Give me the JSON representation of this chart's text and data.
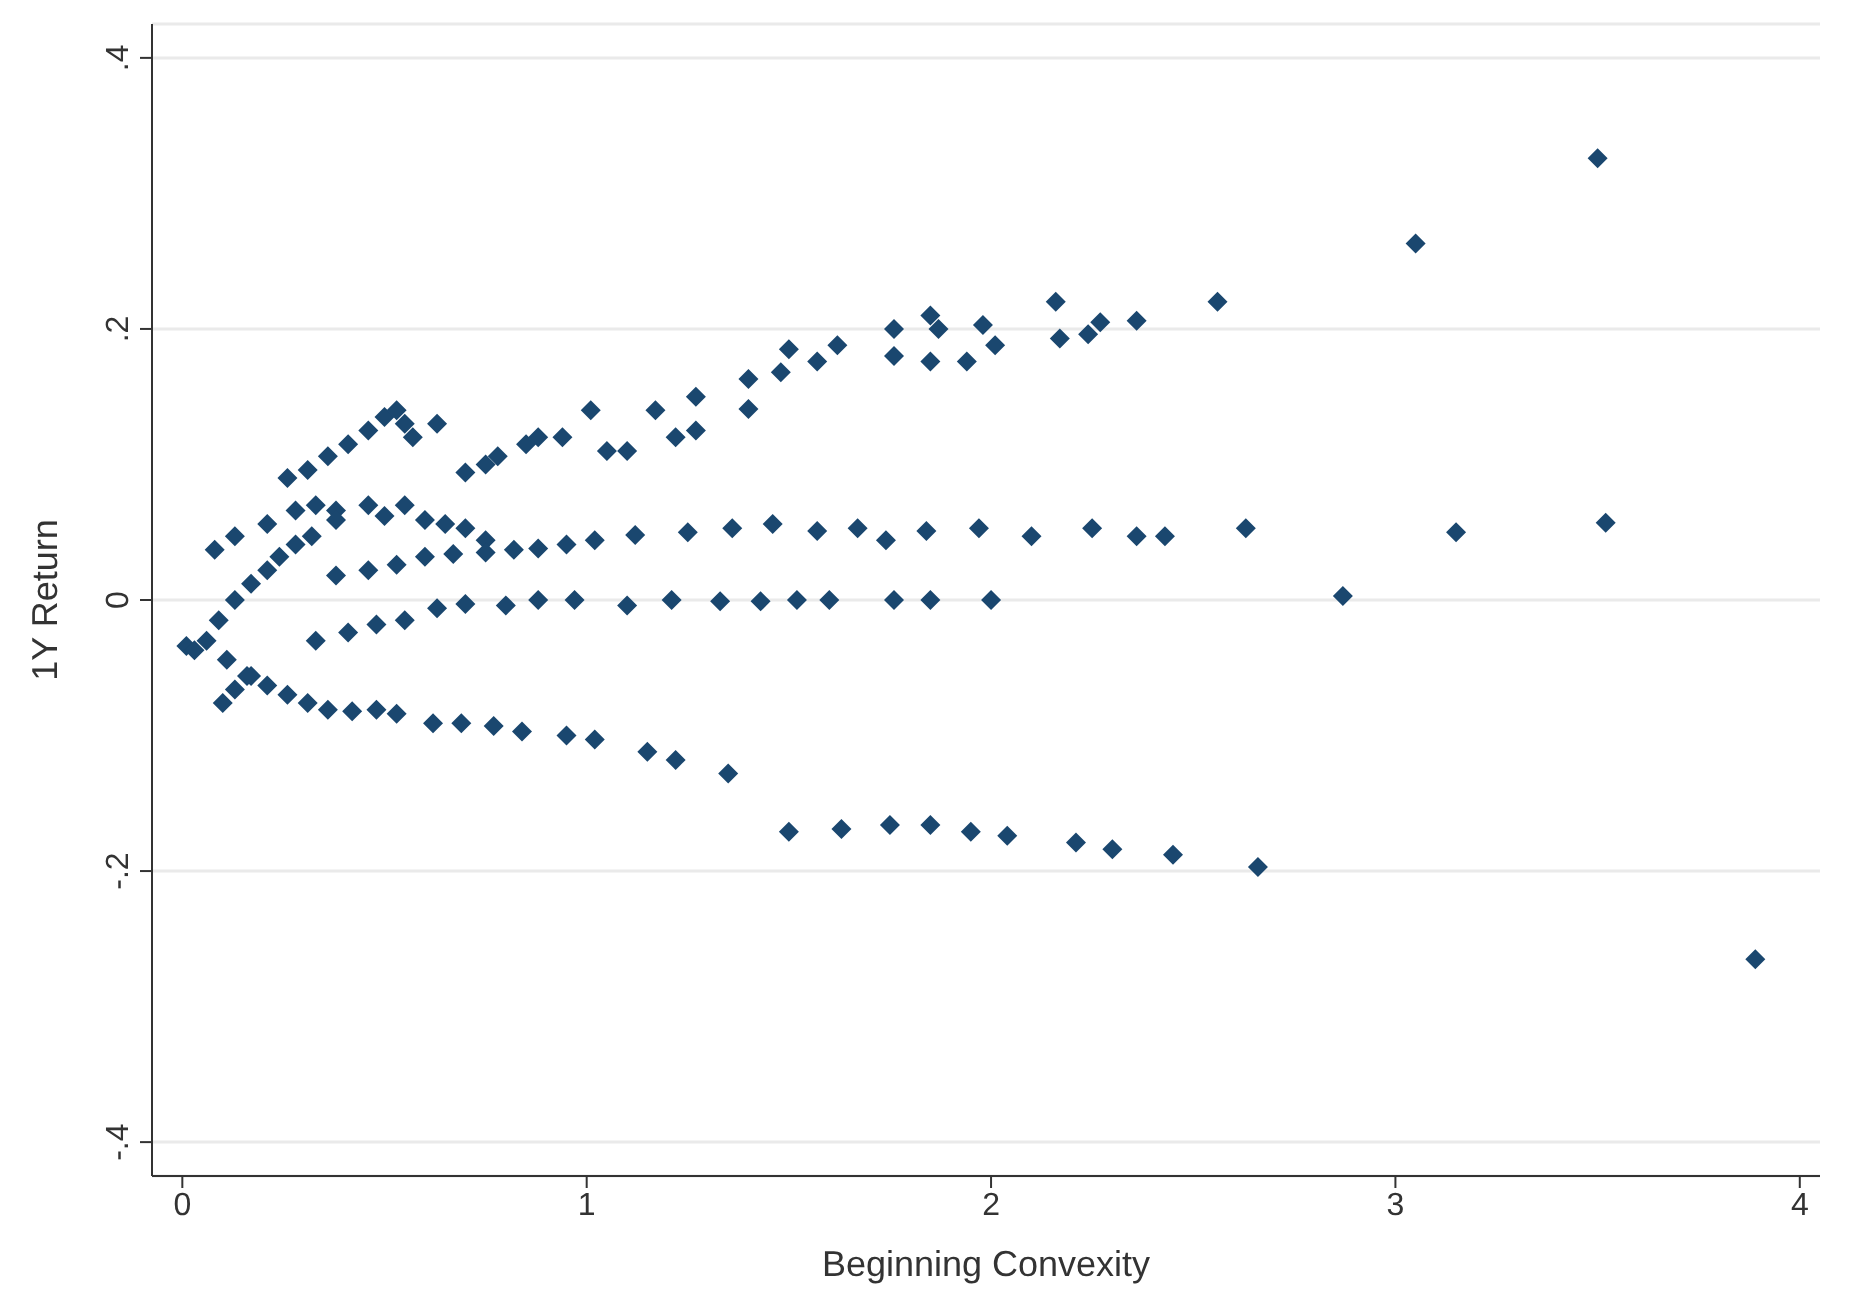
{
  "chart_data": {
    "type": "scatter",
    "xlabel": "Beginning Convexity",
    "ylabel": "1Y Return",
    "xlim": [
      -0.075,
      4.05
    ],
    "xticks": [
      0,
      1,
      2,
      3,
      4
    ],
    "ylim": [
      -0.425,
      0.425
    ],
    "yticks": [
      {
        "value": 0.4,
        "label": ".4"
      },
      {
        "value": 0.2,
        "label": ".2"
      },
      {
        "value": 0,
        "label": "0"
      },
      {
        "value": -0.2,
        "label": "-.2"
      },
      {
        "value": -0.4,
        "label": "-.4"
      }
    ],
    "grid": "y",
    "marker": "diamond",
    "legend": false,
    "series": [
      {
        "color": "#1a476f",
        "x": [
          0.26,
          0.31,
          0.36,
          0.41,
          0.46,
          0.5,
          0.53,
          0.55,
          0.57,
          0.63,
          0.7,
          0.75,
          0.78,
          0.85,
          0.88,
          0.94,
          1.01,
          1.05,
          1.1,
          1.17,
          1.22,
          1.27,
          1.27,
          1.4,
          1.4,
          1.48,
          1.5,
          1.57,
          1.62,
          1.76,
          1.76,
          1.85,
          1.87,
          1.85,
          1.94,
          1.98,
          2.01,
          2.16,
          2.17,
          2.24,
          2.27,
          2.36,
          2.56,
          3.05,
          3.5,
          0.08,
          0.13,
          0.21,
          0.28,
          0.33,
          0.38,
          0.46,
          0.5,
          0.55,
          0.6,
          0.65,
          0.7,
          0.75,
          0.82,
          0.88,
          0.95,
          1.02,
          1.12,
          1.25,
          1.36,
          1.46,
          1.57,
          1.67,
          1.74,
          1.84,
          1.97,
          2.1,
          2.25,
          2.36,
          2.43,
          2.63,
          3.15,
          3.52,
          0.33,
          0.41,
          0.48,
          0.55,
          0.63,
          0.7,
          0.8,
          0.88,
          0.97,
          1.1,
          1.21,
          1.33,
          1.43,
          1.52,
          1.6,
          1.76,
          1.85,
          2.0,
          2.87,
          0.38,
          0.46,
          0.53,
          0.6,
          0.67,
          0.75,
          0.01,
          0.06,
          0.09,
          0.13,
          0.17,
          0.21,
          0.24,
          0.28,
          0.32,
          0.38,
          0.03,
          0.11,
          0.16,
          0.21,
          0.26,
          0.31,
          0.36,
          0.42,
          0.48,
          0.53,
          0.62,
          0.69,
          0.77,
          0.84,
          0.95,
          1.02,
          1.15,
          1.22,
          1.35,
          1.5,
          1.63,
          1.75,
          1.85,
          1.95,
          2.04,
          2.21,
          2.3,
          2.45,
          2.66,
          3.89,
          0.1,
          0.13,
          0.17
        ],
        "values": [
          0.09,
          0.096,
          0.106,
          0.115,
          0.125,
          0.135,
          0.14,
          0.13,
          0.12,
          0.13,
          0.094,
          0.1,
          0.106,
          0.115,
          0.12,
          0.12,
          0.14,
          0.11,
          0.11,
          0.14,
          0.12,
          0.125,
          0.15,
          0.163,
          0.141,
          0.168,
          0.185,
          0.176,
          0.188,
          0.2,
          0.18,
          0.21,
          0.2,
          0.176,
          0.176,
          0.203,
          0.188,
          0.22,
          0.193,
          0.196,
          0.205,
          0.206,
          0.22,
          0.263,
          0.326,
          0.037,
          0.047,
          0.056,
          0.066,
          0.07,
          0.066,
          0.07,
          0.062,
          0.07,
          0.059,
          0.056,
          0.053,
          0.044,
          0.037,
          0.038,
          0.041,
          0.044,
          0.048,
          0.05,
          0.053,
          0.056,
          0.051,
          0.053,
          0.044,
          0.051,
          0.053,
          0.047,
          0.053,
          0.047,
          0.047,
          0.053,
          0.05,
          0.057,
          -0.03,
          -0.024,
          -0.018,
          -0.015,
          -0.006,
          -0.003,
          -0.004,
          0,
          0,
          -0.004,
          0,
          -0.001,
          -0.001,
          0,
          0,
          0,
          0,
          0,
          0.003,
          0.018,
          0.022,
          0.026,
          0.032,
          0.034,
          0.035,
          -0.034,
          -0.03,
          -0.015,
          0,
          0.012,
          0.022,
          0.032,
          0.041,
          0.047,
          0.059,
          -0.037,
          -0.044,
          -0.056,
          -0.063,
          -0.07,
          -0.076,
          -0.081,
          -0.082,
          -0.081,
          -0.084,
          -0.091,
          -0.091,
          -0.093,
          -0.097,
          -0.1,
          -0.103,
          -0.112,
          -0.118,
          -0.128,
          -0.171,
          -0.169,
          -0.166,
          -0.166,
          -0.171,
          -0.174,
          -0.179,
          -0.184,
          -0.188,
          -0.197,
          -0.265,
          -0.076,
          -0.066,
          -0.056
        ]
      }
    ]
  }
}
